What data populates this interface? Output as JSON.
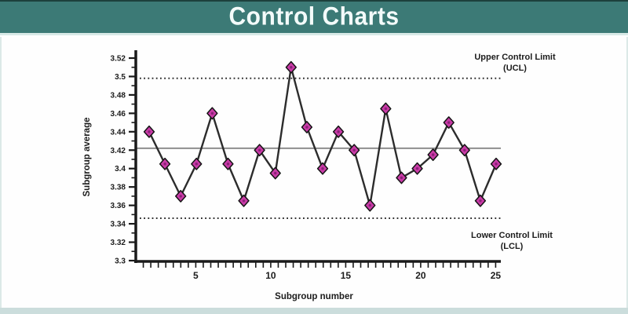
{
  "header": {
    "title": "Control Charts",
    "bg_color": "#3c7a76",
    "top_line_color": "#1d403c",
    "text_color": "#f3fbfa"
  },
  "page": {
    "panel_bg": "#fefefe",
    "frame_color": "#dce9e7",
    "bottom_strip_color": "#cbdddc"
  },
  "chart_data": {
    "type": "line",
    "title": "Control Charts",
    "xlabel": "Subgroup number",
    "ylabel": "Subgroup average",
    "x": [
      2,
      3,
      4,
      5,
      6,
      7,
      8,
      9,
      10,
      11,
      12,
      13,
      14,
      15,
      16,
      17,
      18,
      19,
      20,
      21,
      22,
      23,
      24
    ],
    "values": [
      3.44,
      3.405,
      3.37,
      3.405,
      3.46,
      3.405,
      3.365,
      3.42,
      3.395,
      3.51,
      3.445,
      3.4,
      3.44,
      3.42,
      3.36,
      3.465,
      3.39,
      3.4,
      3.415,
      3.45,
      3.42,
      3.365,
      3.405
    ],
    "center_line": 3.422,
    "upper_control_limit": 3.498,
    "lower_control_limit": 3.346,
    "ucl_label_line1": "Upper Control Limit",
    "ucl_label_line2": "(UCL)",
    "lcl_label_line1": "Lower Control Limit",
    "lcl_label_line2": "(LCL)",
    "xlim": [
      1,
      25.8
    ],
    "ylim": [
      3.3,
      3.52
    ],
    "x_tick_values": [
      5,
      10,
      15,
      20,
      25
    ],
    "x_tick_labels": [
      "5",
      "10",
      "15",
      "20",
      "25"
    ],
    "x_minor_tick_step": 0.5,
    "y_tick_values": [
      3.3,
      3.32,
      3.34,
      3.36,
      3.38,
      3.4,
      3.42,
      3.44,
      3.46,
      3.48,
      3.5,
      3.52
    ],
    "y_tick_labels": [
      "3.3",
      "3.32",
      "3.34",
      "3.36",
      "3.38",
      "3.4",
      "3.42",
      "3.44",
      "3.46",
      "3.48",
      "3.5",
      "3.52"
    ],
    "y_minor_tick_step": 0.01,
    "grid": "off",
    "legend": "none",
    "marker_shape": "diamond",
    "colors": {
      "series_line": "#2c2c2c",
      "marker_fill": "#c93ba7",
      "marker_stroke": "#141414",
      "marker_core": "#8a2177",
      "center_line": "#8e8e8e",
      "limit_lines": "#2e2e2e",
      "axis": "#1a1a1a",
      "text": "#1c1c1c"
    }
  }
}
